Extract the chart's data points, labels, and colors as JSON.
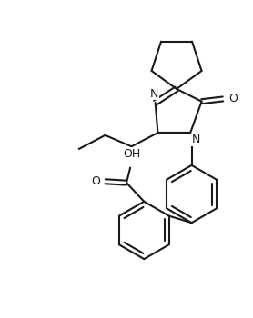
{
  "background_color": "#ffffff",
  "line_color": "#1a1a1a",
  "line_width": 1.5,
  "figsize": [
    2.78,
    3.5
  ],
  "dpi": 100,
  "xlim": [
    -1.5,
    8.5
  ],
  "ylim": [
    -0.5,
    10.5
  ]
}
